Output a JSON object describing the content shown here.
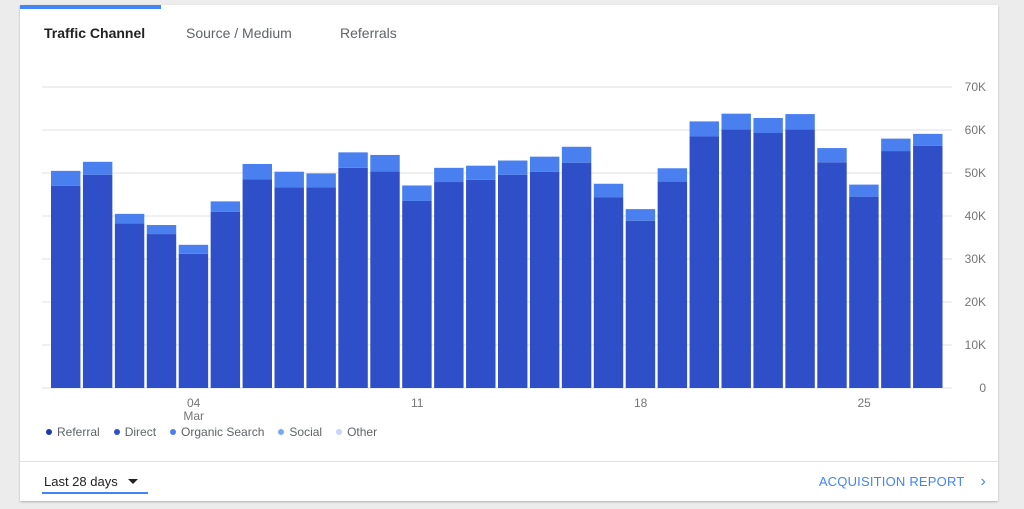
{
  "tabs": [
    {
      "label": "Traffic Channel",
      "active": true
    },
    {
      "label": "Source / Medium",
      "active": false
    },
    {
      "label": "Referrals",
      "active": false
    }
  ],
  "colors": {
    "accent": "#4285f4",
    "direct": "#2f4fc8",
    "organic": "#4a7ff0",
    "referral": "#1d3aa8",
    "social": "#7aa7f2",
    "other": "#c5d6f8",
    "grid": "#e0e0e0",
    "axis_text": "#757575"
  },
  "legend": [
    {
      "name": "Referral",
      "color": "#1d3aa8"
    },
    {
      "name": "Direct",
      "color": "#2f4fc8"
    },
    {
      "name": "Organic Search",
      "color": "#4a7ff0"
    },
    {
      "name": "Social",
      "color": "#7aa7f2"
    },
    {
      "name": "Other",
      "color": "#c5d6f8"
    }
  ],
  "footer": {
    "range_label": "Last 28 days",
    "report_label": "ACQUISITION REPORT"
  },
  "chart_data": {
    "type": "bar",
    "stacked": true,
    "x": [
      1,
      2,
      3,
      4,
      5,
      6,
      7,
      8,
      9,
      10,
      11,
      12,
      13,
      14,
      15,
      16,
      17,
      18,
      19,
      20,
      21,
      22,
      23,
      24,
      25,
      26,
      27,
      28
    ],
    "x_tick_labels": [
      {
        "index": 5,
        "label": "04",
        "sublabel": "Mar"
      },
      {
        "index": 12,
        "label": "11"
      },
      {
        "index": 19,
        "label": "18"
      },
      {
        "index": 26,
        "label": "25"
      }
    ],
    "series": [
      {
        "name": "Direct",
        "color": "#2f4fc8",
        "values": [
          47000,
          49600,
          38300,
          35800,
          31200,
          41000,
          48500,
          46700,
          46700,
          51200,
          50400,
          43500,
          47900,
          48400,
          49600,
          50300,
          52400,
          44300,
          38900,
          48000,
          58500,
          60100,
          59300,
          60100,
          52500,
          44500,
          55100,
          56300
        ]
      },
      {
        "name": "Organic Search",
        "color": "#4a7ff0",
        "values": [
          3500,
          3000,
          2200,
          2100,
          2100,
          2400,
          3600,
          3600,
          3200,
          3600,
          3800,
          3600,
          3300,
          3300,
          3300,
          3500,
          3700,
          3200,
          2700,
          3100,
          3500,
          3700,
          3500,
          3600,
          3300,
          2800,
          2900,
          2800
        ]
      }
    ],
    "y_ticks": [
      0,
      10000,
      20000,
      30000,
      40000,
      50000,
      60000,
      70000
    ],
    "y_tick_labels": [
      "0",
      "10K",
      "20K",
      "30K",
      "40K",
      "50K",
      "60K",
      "70K"
    ],
    "ylim": [
      0,
      70000
    ],
    "grid": true,
    "legend_position": "bottom-left"
  }
}
